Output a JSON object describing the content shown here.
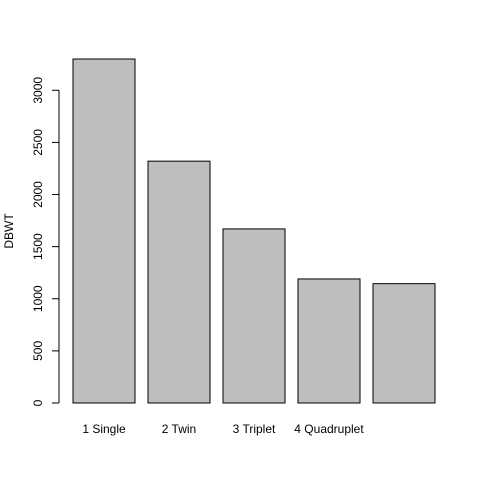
{
  "chart_data": {
    "type": "bar",
    "categories": [
      "1 Single",
      "2 Twin",
      "3 Triplet",
      "4 Quadruplet",
      ""
    ],
    "values": [
      3300,
      2320,
      1670,
      1190,
      1145
    ],
    "yticks": [
      "0",
      "500",
      "1000",
      "1500",
      "2000",
      "2500",
      "3000"
    ],
    "ylabel": "DBWT",
    "xlabel": "",
    "title": "",
    "ylim": [
      0,
      3300
    ],
    "grid": false,
    "colors": {
      "bar_fill": "#bebebe",
      "bar_stroke": "#000000"
    }
  }
}
